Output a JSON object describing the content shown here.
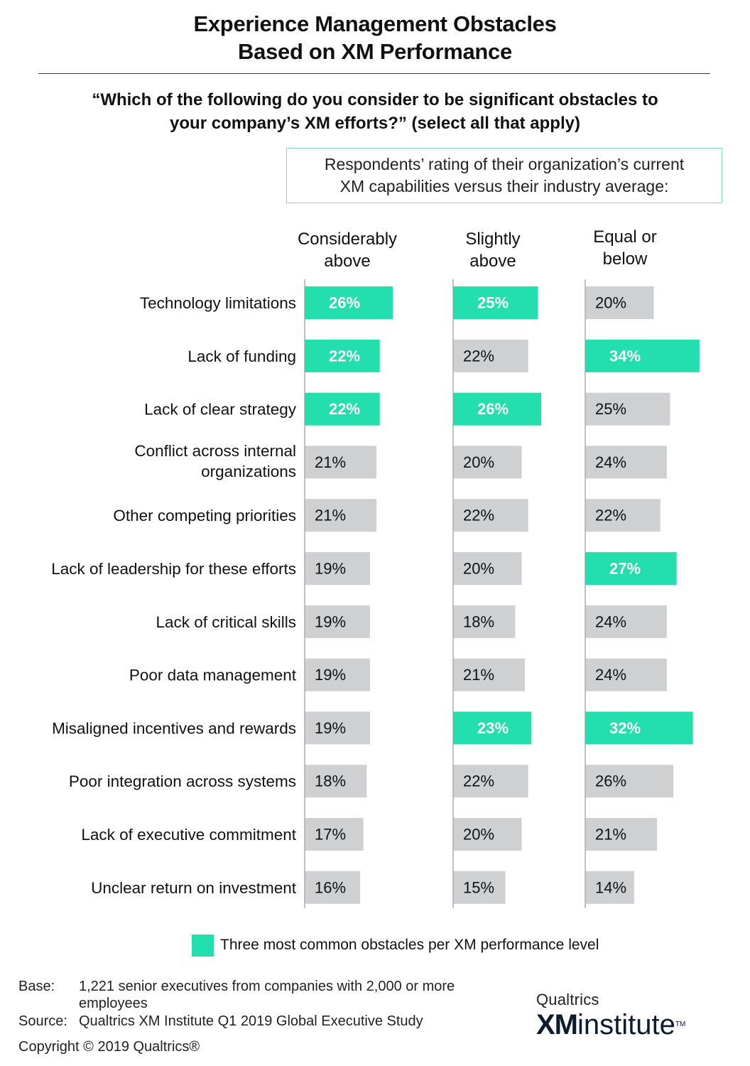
{
  "title_line1": "Experience Management Obstacles",
  "title_line2": "Based on XM Performance",
  "question_line1": "“Which of the following do you consider to be significant obstacles to",
  "question_line2": "your company’s XM efforts?” (select all that apply)",
  "basis_line1": "Respondents’ rating of their organization’s current",
  "basis_line2": "XM capabilities versus their industry average:",
  "legend_text": "Three most common obstacles per XM performance level",
  "footer": {
    "base_label": "Base:",
    "base_line1": "1,221 senior executives from companies with 2,000 or more",
    "base_line2": "employees",
    "source_label": "Source:",
    "source_text": "Qualtrics XM Institute Q1 2019 Global Executive Study",
    "copyright": "Copyright © 2019 Qualtrics®"
  },
  "logo": {
    "top": "Qualtrics",
    "xm": "XM",
    "institute": "institute",
    "tm": "TM"
  },
  "colors": {
    "highlight": "#22dfad",
    "normal": "#cfd0d2",
    "highlight_text": "#ffffff",
    "normal_text": "#111111"
  },
  "chart_data": {
    "type": "bar",
    "orientation": "horizontal",
    "categories": [
      [
        "Technology limitations"
      ],
      [
        "Lack of funding"
      ],
      [
        "Lack of clear strategy"
      ],
      [
        "Conflict across internal",
        "organizations"
      ],
      [
        "Other competing priorities"
      ],
      [
        "Lack of leadership for these efforts"
      ],
      [
        "Lack of critical skills"
      ],
      [
        "Poor data management"
      ],
      [
        "Misaligned incentives and rewards"
      ],
      [
        "Poor integration across systems"
      ],
      [
        "Lack of executive commitment"
      ],
      [
        "Unclear return on investment"
      ]
    ],
    "unit": "%",
    "series": [
      {
        "name_line1": "Considerably",
        "name_line2": "above",
        "values": [
          26,
          22,
          22,
          21,
          21,
          19,
          19,
          19,
          19,
          18,
          17,
          16
        ],
        "highlight": [
          true,
          true,
          true,
          false,
          false,
          false,
          false,
          false,
          false,
          false,
          false,
          false
        ]
      },
      {
        "name_line1": "Slightly",
        "name_line2": "above",
        "values": [
          25,
          22,
          26,
          20,
          22,
          20,
          18,
          21,
          23,
          22,
          20,
          15
        ],
        "highlight": [
          true,
          false,
          true,
          false,
          false,
          false,
          false,
          false,
          true,
          false,
          false,
          false
        ]
      },
      {
        "name_line1": "Equal or",
        "name_line2": "below",
        "values": [
          20,
          34,
          25,
          24,
          22,
          27,
          24,
          24,
          32,
          26,
          21,
          14
        ],
        "highlight": [
          false,
          true,
          false,
          false,
          false,
          true,
          false,
          false,
          true,
          false,
          false,
          false
        ]
      }
    ]
  }
}
